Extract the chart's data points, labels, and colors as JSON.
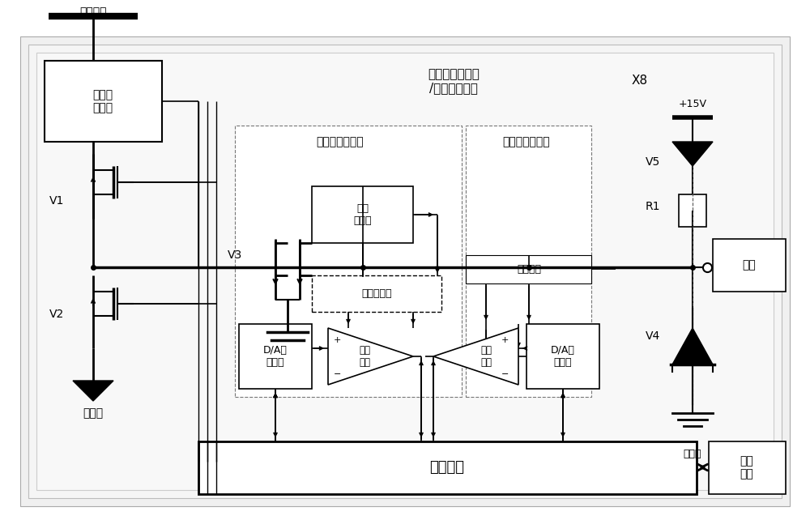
{
  "bg_color": "#ffffff",
  "figsize": [
    10.0,
    6.42
  ],
  "dpi": 100,
  "texts": {
    "gonglv_muxian": "功率母线",
    "duanlu_baohudanyuan": "短路保\n护单元",
    "V1": "V1",
    "V2": "V2",
    "V3": "V3",
    "gonglv_di": "功率地",
    "jidian_label": "机电管理计算机\n/远程接口单元",
    "X8": "X8",
    "plus15V": "+15V",
    "V5": "V5",
    "R1": "R1",
    "V4": "V4",
    "fuzai": "负载",
    "shuchubaohukuai": "输出保护功能块",
    "shurucaijikuai": "输入采集功能块",
    "dianliu_chuanganqi": "电流\n传感器",
    "erxuan_yikaiguan": "二选一开关",
    "DA_left": "D/A转\n换单元",
    "bijiao_left": "比较\n单元",
    "bijiao_right": "比较\n单元",
    "DA_right": "D/A转\n换单元",
    "langyong_diankzu": "浪涌电阻",
    "kongzhi_danyuan": "控制单元",
    "feiji_xitong": "飞机\n系统",
    "pingbi_di": "屏蔽地"
  }
}
